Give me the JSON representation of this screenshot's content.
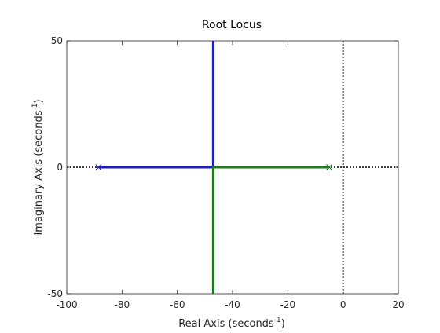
{
  "chart_data": {
    "type": "line",
    "title": "Root Locus",
    "xlabel": {
      "text": "Real Axis (seconds",
      "superscript": "-1",
      "suffix": ")"
    },
    "ylabel": {
      "text": "Imaginary Axis (seconds",
      "superscript": "-1",
      "suffix": ")"
    },
    "xlim": [
      -100,
      20
    ],
    "ylim": [
      -50,
      50
    ],
    "xticks": [
      -100,
      -80,
      -60,
      -40,
      -20,
      0,
      20
    ],
    "xtick_labels": [
      "-100",
      "-80",
      "-60",
      "-40",
      "-20",
      "0",
      "20"
    ],
    "yticks": [
      -50,
      0,
      50
    ],
    "ytick_labels": [
      "-50",
      "0",
      "50"
    ],
    "grid": false,
    "legend": "none",
    "reference_lines": [
      {
        "orientation": "horizontal",
        "value": 0,
        "style": "dotted",
        "color": "#404040"
      },
      {
        "orientation": "vertical",
        "value": 0,
        "style": "dotted",
        "color": "#404040"
      }
    ],
    "series": [
      {
        "color": "#1f1fbf",
        "points": [
          [
            -88.5,
            0
          ],
          [
            -47.0,
            0
          ],
          [
            -47.0,
            50
          ]
        ]
      },
      {
        "color": "#1f7a1f",
        "points": [
          [
            -5.0,
            0
          ],
          [
            -47.0,
            0
          ],
          [
            -47.0,
            -50
          ]
        ]
      }
    ],
    "poles": [
      {
        "x": -88.5,
        "y": 0,
        "color": "#1f1fbf",
        "marker": "x"
      },
      {
        "x": -5.0,
        "y": 0,
        "color": "#1f7a1f",
        "marker": "x"
      }
    ]
  }
}
